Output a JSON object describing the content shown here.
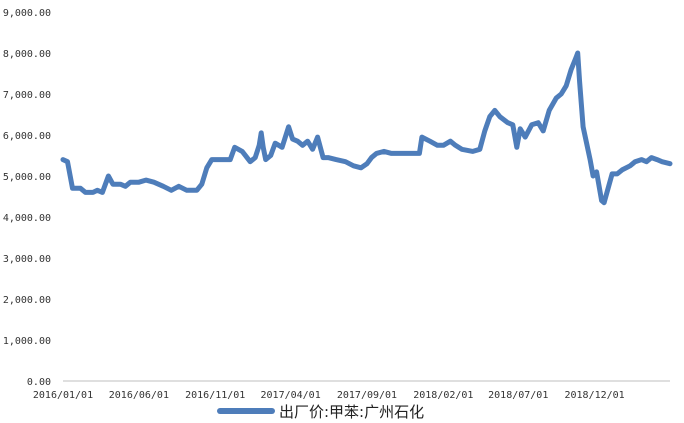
{
  "colors": {
    "series": "#4E7DBA",
    "axis": "#BFBFBF",
    "text": "#333333"
  },
  "legend": {
    "position": "bottom-center"
  },
  "chart_data": {
    "type": "line",
    "title": "",
    "xlabel": "",
    "ylabel": "",
    "ylim": [
      0,
      9000
    ],
    "grid": false,
    "yticks": [
      "0.00",
      "1,000.00",
      "2,000.00",
      "3,000.00",
      "4,000.00",
      "5,000.00",
      "6,000.00",
      "7,000.00",
      "8,000.00",
      "9,000.00"
    ],
    "xticks": [
      "2016/01/01",
      "2016/06/01",
      "2016/11/01",
      "2017/04/01",
      "2017/09/01",
      "2018/02/01",
      "2018/07/01",
      "2018/12/01"
    ],
    "x_range": [
      "2016/01/01",
      "2019/05/01"
    ],
    "series": [
      {
        "name": "出厂价:甲苯:广州石化",
        "points": [
          [
            "2016/01/01",
            5400
          ],
          [
            "2016/01/10",
            5350
          ],
          [
            "2016/01/20",
            4700
          ],
          [
            "2016/02/05",
            4700
          ],
          [
            "2016/02/15",
            4600
          ],
          [
            "2016/03/01",
            4600
          ],
          [
            "2016/03/10",
            4650
          ],
          [
            "2016/03/20",
            4600
          ],
          [
            "2016/04/01",
            5000
          ],
          [
            "2016/04/10",
            4800
          ],
          [
            "2016/04/25",
            4800
          ],
          [
            "2016/05/05",
            4750
          ],
          [
            "2016/05/15",
            4850
          ],
          [
            "2016/06/01",
            4850
          ],
          [
            "2016/06/15",
            4900
          ],
          [
            "2016/07/01",
            4850
          ],
          [
            "2016/07/20",
            4750
          ],
          [
            "2016/08/05",
            4650
          ],
          [
            "2016/08/20",
            4750
          ],
          [
            "2016/09/05",
            4650
          ],
          [
            "2016/09/25",
            4650
          ],
          [
            "2016/10/05",
            4800
          ],
          [
            "2016/10/15",
            5200
          ],
          [
            "2016/10/25",
            5400
          ],
          [
            "2016/11/15",
            5400
          ],
          [
            "2016/12/01",
            5400
          ],
          [
            "2016/12/10",
            5700
          ],
          [
            "2016/12/25",
            5600
          ],
          [
            "2017/01/10",
            5350
          ],
          [
            "2017/01/20",
            5450
          ],
          [
            "2017/01/28",
            5750
          ],
          [
            "2017/02/01",
            6050
          ],
          [
            "2017/02/05",
            5700
          ],
          [
            "2017/02/10",
            5400
          ],
          [
            "2017/02/20",
            5500
          ],
          [
            "2017/03/01",
            5800
          ],
          [
            "2017/03/15",
            5700
          ],
          [
            "2017/03/28",
            6200
          ],
          [
            "2017/04/05",
            5900
          ],
          [
            "2017/04/15",
            5850
          ],
          [
            "2017/04/25",
            5750
          ],
          [
            "2017/05/05",
            5850
          ],
          [
            "2017/05/15",
            5650
          ],
          [
            "2017/05/25",
            5950
          ],
          [
            "2017/06/05",
            5450
          ],
          [
            "2017/06/15",
            5450
          ],
          [
            "2017/07/01",
            5400
          ],
          [
            "2017/07/20",
            5350
          ],
          [
            "2017/08/05",
            5250
          ],
          [
            "2017/08/20",
            5200
          ],
          [
            "2017/09/01",
            5300
          ],
          [
            "2017/09/10",
            5450
          ],
          [
            "2017/09/20",
            5550
          ],
          [
            "2017/10/05",
            5600
          ],
          [
            "2017/10/20",
            5550
          ],
          [
            "2017/11/10",
            5550
          ],
          [
            "2017/12/01",
            5550
          ],
          [
            "2017/12/15",
            5550
          ],
          [
            "2017/12/20",
            5950
          ],
          [
            "2018/01/05",
            5850
          ],
          [
            "2018/01/20",
            5750
          ],
          [
            "2018/02/01",
            5750
          ],
          [
            "2018/02/15",
            5850
          ],
          [
            "2018/02/25",
            5750
          ],
          [
            "2018/03/10",
            5650
          ],
          [
            "2018/04/01",
            5600
          ],
          [
            "2018/04/15",
            5650
          ],
          [
            "2018/04/25",
            6100
          ],
          [
            "2018/05/05",
            6450
          ],
          [
            "2018/05/15",
            6600
          ],
          [
            "2018/05/25",
            6450
          ],
          [
            "2018/06/10",
            6300
          ],
          [
            "2018/06/20",
            6250
          ],
          [
            "2018/06/28",
            5700
          ],
          [
            "2018/07/05",
            6150
          ],
          [
            "2018/07/15",
            5950
          ],
          [
            "2018/07/28",
            6250
          ],
          [
            "2018/08/10",
            6300
          ],
          [
            "2018/08/20",
            6100
          ],
          [
            "2018/09/01",
            6600
          ],
          [
            "2018/09/15",
            6900
          ],
          [
            "2018/09/25",
            7000
          ],
          [
            "2018/10/05",
            7200
          ],
          [
            "2018/10/15",
            7600
          ],
          [
            "2018/10/25",
            7900
          ],
          [
            "2018/10/28",
            8000
          ],
          [
            "2018/11/01",
            7300
          ],
          [
            "2018/11/08",
            6200
          ],
          [
            "2018/11/15",
            5800
          ],
          [
            "2018/11/22",
            5400
          ],
          [
            "2018/11/28",
            5000
          ],
          [
            "2018/12/05",
            5100
          ],
          [
            "2018/12/15",
            4400
          ],
          [
            "2018/12/20",
            4350
          ],
          [
            "2018/12/28",
            4700
          ],
          [
            "2019/01/05",
            5050
          ],
          [
            "2019/01/15",
            5050
          ],
          [
            "2019/01/25",
            5150
          ],
          [
            "2019/02/10",
            5250
          ],
          [
            "2019/02/20",
            5350
          ],
          [
            "2019/03/05",
            5400
          ],
          [
            "2019/03/15",
            5350
          ],
          [
            "2019/03/25",
            5450
          ],
          [
            "2019/04/05",
            5400
          ],
          [
            "2019/04/15",
            5350
          ],
          [
            "2019/05/01",
            5300
          ]
        ]
      }
    ]
  }
}
